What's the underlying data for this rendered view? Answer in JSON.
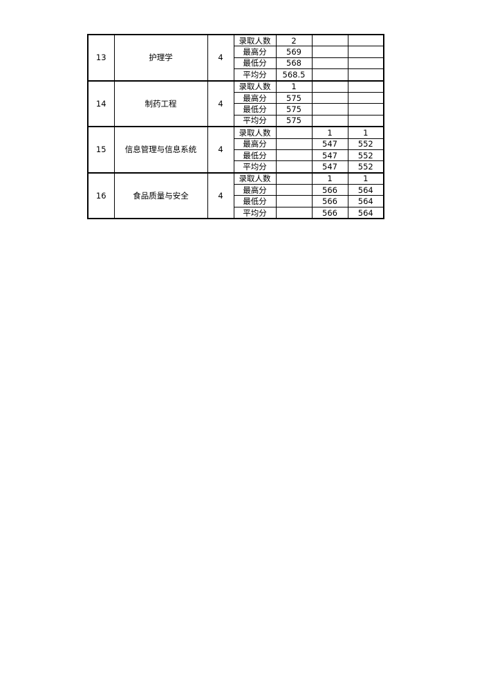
{
  "table": {
    "row_labels": [
      "录取人数",
      "最高分",
      "最低分",
      "平均分"
    ],
    "groups": [
      {
        "no": "13",
        "major": "护理学",
        "years": "4",
        "values": [
          [
            "2",
            "",
            ""
          ],
          [
            "569",
            "",
            ""
          ],
          [
            "568",
            "",
            ""
          ],
          [
            "568.5",
            "",
            ""
          ]
        ]
      },
      {
        "no": "14",
        "major": "制药工程",
        "years": "4",
        "values": [
          [
            "1",
            "",
            ""
          ],
          [
            "575",
            "",
            ""
          ],
          [
            "575",
            "",
            ""
          ],
          [
            "575",
            "",
            ""
          ]
        ]
      },
      {
        "no": "15",
        "major": "信息管理与信息系统",
        "years": "4",
        "values": [
          [
            "",
            "1",
            "1"
          ],
          [
            "",
            "547",
            "552"
          ],
          [
            "",
            "547",
            "552"
          ],
          [
            "",
            "547",
            "552"
          ]
        ]
      },
      {
        "no": "16",
        "major": "食品质量与安全",
        "years": "4",
        "values": [
          [
            "",
            "1",
            "1"
          ],
          [
            "",
            "566",
            "564"
          ],
          [
            "",
            "566",
            "564"
          ],
          [
            "",
            "566",
            "564"
          ]
        ]
      }
    ]
  }
}
